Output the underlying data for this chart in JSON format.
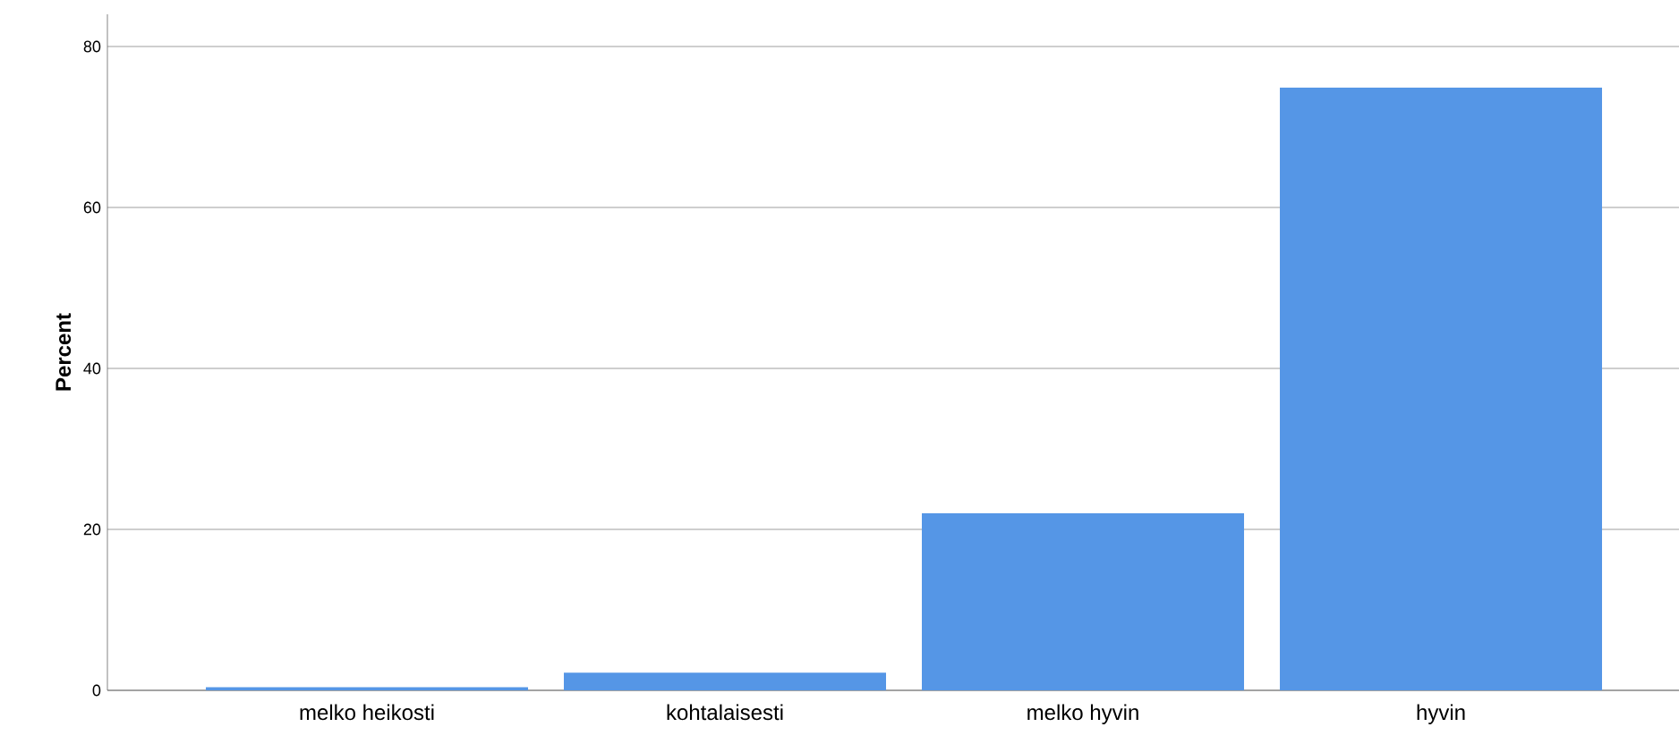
{
  "chart_data": {
    "type": "bar",
    "ylabel": "Percent",
    "categories": [
      "melko heikosti",
      "kohtalaisesti",
      "melko hyvin",
      "hyvin"
    ],
    "values": [
      0.4,
      2.2,
      22.0,
      74.9
    ],
    "color": "#5596e6",
    "ylim": [
      0,
      84
    ],
    "yticks": [
      0,
      20,
      40,
      60,
      80
    ],
    "grid": "y"
  }
}
